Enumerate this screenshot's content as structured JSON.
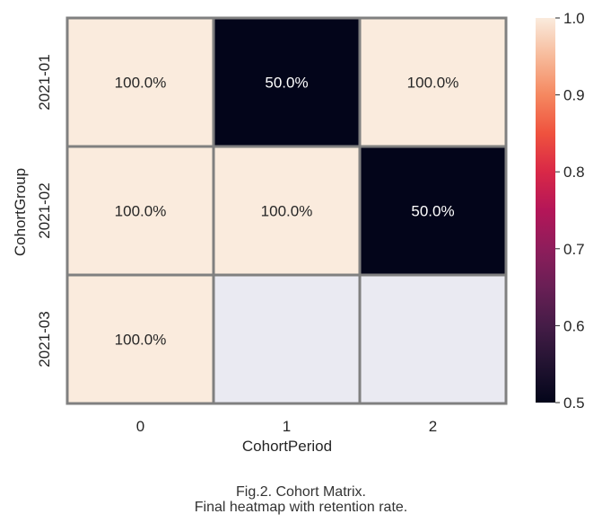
{
  "chart_data": {
    "type": "heatmap",
    "xlabel": "CohortPeriod",
    "ylabel": "CohortGroup",
    "x_categories": [
      "0",
      "1",
      "2"
    ],
    "y_categories": [
      "2021-01",
      "2021-02",
      "2021-03"
    ],
    "values": [
      [
        1.0,
        0.5,
        1.0
      ],
      [
        1.0,
        1.0,
        0.5
      ],
      [
        1.0,
        null,
        null
      ]
    ],
    "cell_labels": [
      [
        "100.0%",
        "50.0%",
        "100.0%"
      ],
      [
        "100.0%",
        "100.0%",
        "50.0%"
      ],
      [
        "100.0%",
        "",
        ""
      ]
    ],
    "colorbar": {
      "vmin": 0.5,
      "vmax": 1.0,
      "ticks": [
        "0.5",
        "0.6",
        "0.7",
        "0.8",
        "0.9",
        "1.0"
      ],
      "colormap": "rocket"
    },
    "colors": {
      "low": "#03051a",
      "high": "#faebdd",
      "missing": "#eaeaf2",
      "cell_border": "#808080"
    }
  },
  "caption": {
    "line1": "Fig.2. Cohort Matrix.",
    "line2": "Final heatmap with retention rate."
  }
}
